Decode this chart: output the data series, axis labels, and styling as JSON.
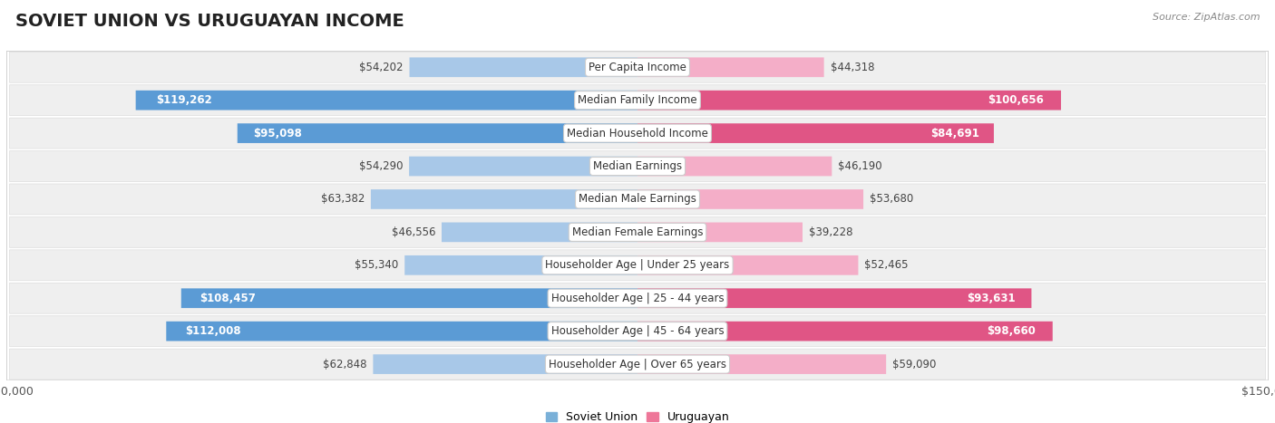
{
  "title": "SOVIET UNION VS URUGUAYAN INCOME",
  "source": "Source: ZipAtlas.com",
  "categories": [
    "Per Capita Income",
    "Median Family Income",
    "Median Household Income",
    "Median Earnings",
    "Median Male Earnings",
    "Median Female Earnings",
    "Householder Age | Under 25 years",
    "Householder Age | 25 - 44 years",
    "Householder Age | 45 - 64 years",
    "Householder Age | Over 65 years"
  ],
  "soviet_values": [
    54202,
    119262,
    95098,
    54290,
    63382,
    46556,
    55340,
    108457,
    112008,
    62848
  ],
  "uruguayan_values": [
    44318,
    100656,
    84691,
    46190,
    53680,
    39228,
    52465,
    93631,
    98660,
    59090
  ],
  "soviet_labels": [
    "$54,202",
    "$119,262",
    "$95,098",
    "$54,290",
    "$63,382",
    "$46,556",
    "$55,340",
    "$108,457",
    "$112,008",
    "$62,848"
  ],
  "uruguayan_labels": [
    "$44,318",
    "$100,656",
    "$84,691",
    "$46,190",
    "$53,680",
    "$39,228",
    "$52,465",
    "$93,631",
    "$98,660",
    "$59,090"
  ],
  "soviet_color_light": "#a8c8e8",
  "soviet_color_dark": "#5b9bd5",
  "uruguayan_color_light": "#f4aec8",
  "uruguayan_color_dark": "#e05585",
  "max_value": 150000,
  "background_color": "#ffffff",
  "row_bg_color": "#efefef",
  "chart_border_color": "#cccccc",
  "legend_soviet_color": "#7ab0d8",
  "legend_uruguayan_color": "#ee7799",
  "title_fontsize": 14,
  "label_fontsize": 8.5,
  "axis_label_fontsize": 9,
  "inside_threshold": 75000
}
